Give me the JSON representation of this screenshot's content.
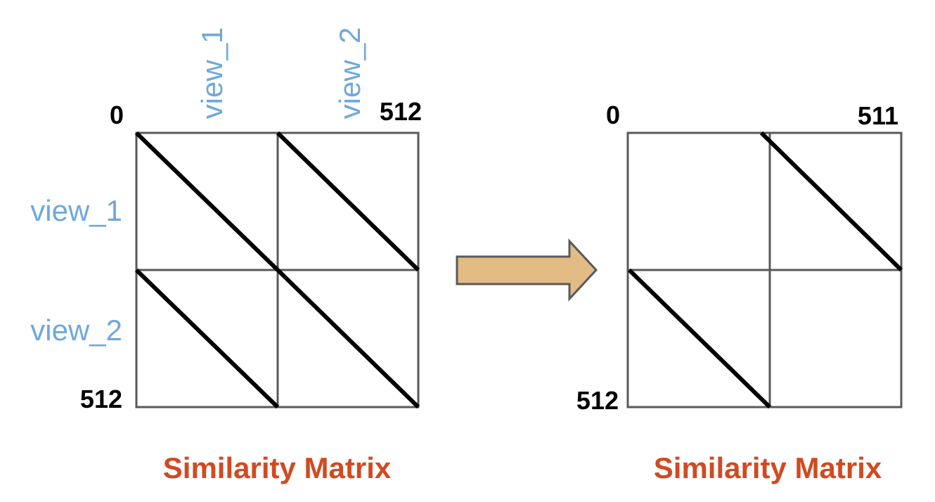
{
  "colors": {
    "grid": "#595959",
    "diagonal": "#000000",
    "view_label": "#6fa8dc",
    "caption": "#d04a22",
    "arrow_fill": "#e2bb85",
    "arrow_stroke": "#595959"
  },
  "left_matrix": {
    "corner_top_left": "0",
    "corner_top_right": "512",
    "corner_bottom_left": "512",
    "column_labels": [
      "view_1",
      "view_2"
    ],
    "row_labels": [
      "view_1",
      "view_2"
    ],
    "caption": "Similarity Matrix"
  },
  "arrow": {
    "icon": "right-arrow-icon"
  },
  "right_matrix": {
    "corner_top_left": "0",
    "corner_top_right": "511",
    "corner_bottom_left": "512",
    "caption": "Similarity Matrix"
  }
}
